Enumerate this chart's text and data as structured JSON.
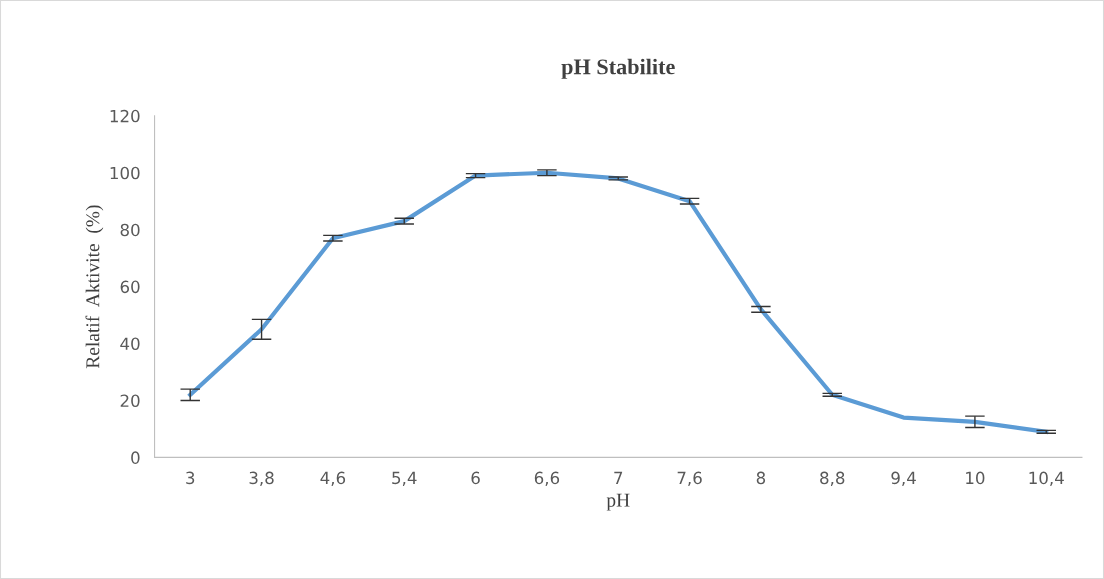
{
  "chart_data": {
    "type": "line",
    "title": "pH Stabilite",
    "xlabel": "pH",
    "ylabel": "Relatif  Aktivite  (%)",
    "categories": [
      "3",
      "3,8",
      "4,6",
      "5,4",
      "6",
      "6,6",
      "7",
      "7,6",
      "8",
      "8,8",
      "9,4",
      "10",
      "10,4"
    ],
    "series": [
      {
        "color": "#5b9bd5",
        "values": [
          22,
          45,
          77,
          83,
          99,
          100,
          98,
          90,
          52,
          22,
          14,
          12.5,
          9
        ],
        "errors": [
          2,
          3.5,
          1,
          1,
          0.7,
          1,
          0.5,
          1,
          1,
          0.5,
          null,
          2,
          0.5
        ]
      }
    ],
    "ylim": [
      0,
      120
    ],
    "yticks": [
      0,
      20,
      40,
      60,
      80,
      100,
      120
    ],
    "grid": false,
    "marker": "none",
    "line_style": "solid"
  }
}
